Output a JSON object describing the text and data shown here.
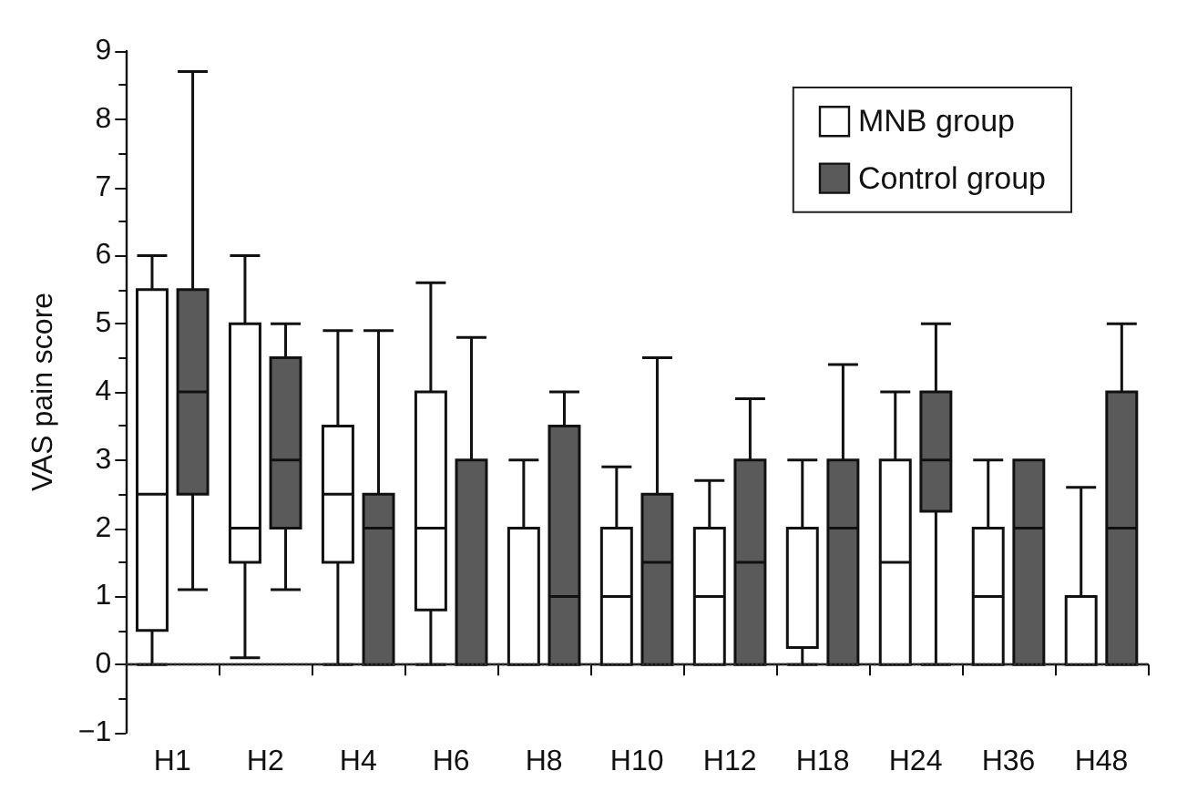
{
  "chart_data": {
    "type": "box",
    "ylabel": "VAS pain score",
    "categories": [
      "H1",
      "H2",
      "H4",
      "H6",
      "H8",
      "H10",
      "H12",
      "H18",
      "H24",
      "H36",
      "H48"
    ],
    "series": [
      {
        "name": "MNB group",
        "color": "#ffffff",
        "boxes": [
          {
            "low": 0,
            "q1": 0.5,
            "median": 2.5,
            "q3": 5.5,
            "high": 6
          },
          {
            "low": 0.1,
            "q1": 1.5,
            "median": 2,
            "q3": 5,
            "high": 6
          },
          {
            "low": 0,
            "q1": 1.5,
            "median": 2.5,
            "q3": 3.5,
            "high": 4.9
          },
          {
            "low": 0,
            "q1": 0.8,
            "median": 2,
            "q3": 4,
            "high": 5.6
          },
          {
            "low": 0,
            "q1": 0,
            "median": 0,
            "q3": 2,
            "high": 3
          },
          {
            "low": 0,
            "q1": 0,
            "median": 1,
            "q3": 2,
            "high": 2.9
          },
          {
            "low": 0,
            "q1": 0,
            "median": 1,
            "q3": 2,
            "high": 2.7
          },
          {
            "low": 0,
            "q1": 0.25,
            "median": 2,
            "q3": 2,
            "high": 3
          },
          {
            "low": 0,
            "q1": 0,
            "median": 1.5,
            "q3": 3,
            "high": 4
          },
          {
            "low": 0,
            "q1": 0,
            "median": 1,
            "q3": 2,
            "high": 3
          },
          {
            "low": 0,
            "q1": 0,
            "median": 0,
            "q3": 1,
            "high": 2.6
          }
        ]
      },
      {
        "name": "Control group",
        "color": "#5a5a5a",
        "boxes": [
          {
            "low": 1.1,
            "q1": 2.5,
            "median": 4,
            "q3": 5.5,
            "high": 8.7
          },
          {
            "low": 1.1,
            "q1": 2,
            "median": 3,
            "q3": 4.5,
            "high": 5
          },
          {
            "low": 0,
            "q1": 0,
            "median": 2,
            "q3": 2.5,
            "high": 4.9
          },
          {
            "low": 0,
            "q1": 0,
            "median": 0,
            "q3": 3,
            "high": 4.8
          },
          {
            "low": 0,
            "q1": 0,
            "median": 1,
            "q3": 3.5,
            "high": 4
          },
          {
            "low": 0,
            "q1": 0,
            "median": 1.5,
            "q3": 2.5,
            "high": 4.5
          },
          {
            "low": 0,
            "q1": 0,
            "median": 1.5,
            "q3": 3,
            "high": 3.9
          },
          {
            "low": 0,
            "q1": 0,
            "median": 2,
            "q3": 3,
            "high": 4.4
          },
          {
            "low": 0,
            "q1": 2.25,
            "median": 3,
            "q3": 4,
            "high": 5
          },
          {
            "low": 0,
            "q1": 0,
            "median": 2,
            "q3": 3,
            "high": 3
          },
          {
            "low": 0,
            "q1": 0,
            "median": 2,
            "q3": 4,
            "high": 5
          }
        ]
      }
    ],
    "ylim": [
      -1,
      9
    ],
    "yticks": [
      -1,
      0,
      1,
      2,
      3,
      4,
      5,
      6,
      7,
      8,
      9
    ],
    "grid": false,
    "legend": "top right",
    "ref_lines": [
      {
        "axis": "y",
        "value": 0,
        "line_style": "dotted",
        "color": "#333333"
      }
    ]
  }
}
